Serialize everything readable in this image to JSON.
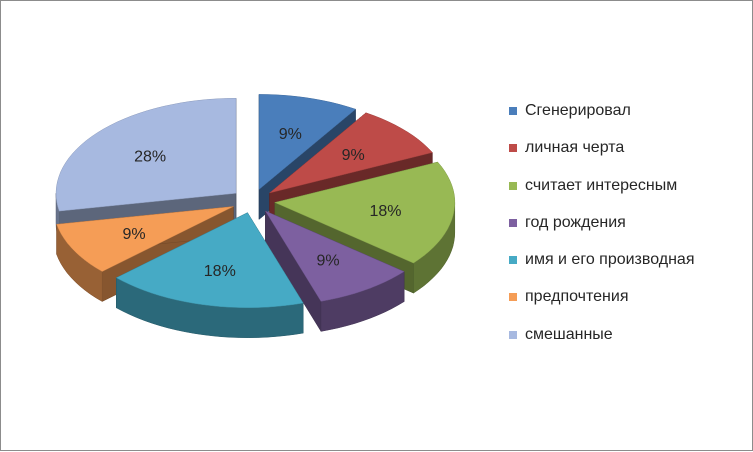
{
  "chart_data": {
    "type": "pie",
    "title": "",
    "categories": [
      "Сгенерировал",
      "личная черта",
      "считает интересным",
      "год рождения",
      "имя и его производная",
      "предпочтения",
      "смешанные"
    ],
    "values": [
      9,
      9,
      18,
      9,
      18,
      9,
      28
    ],
    "labels": [
      "9%",
      "9%",
      "18%",
      "9%",
      "18%",
      "9%",
      "28%"
    ],
    "colors": [
      "#4a7ebb",
      "#be4b48",
      "#98b954",
      "#7d60a0",
      "#46aac5",
      "#f59d56",
      "#a7b9e0"
    ],
    "style": "3d-exploded",
    "legend_position": "right"
  }
}
